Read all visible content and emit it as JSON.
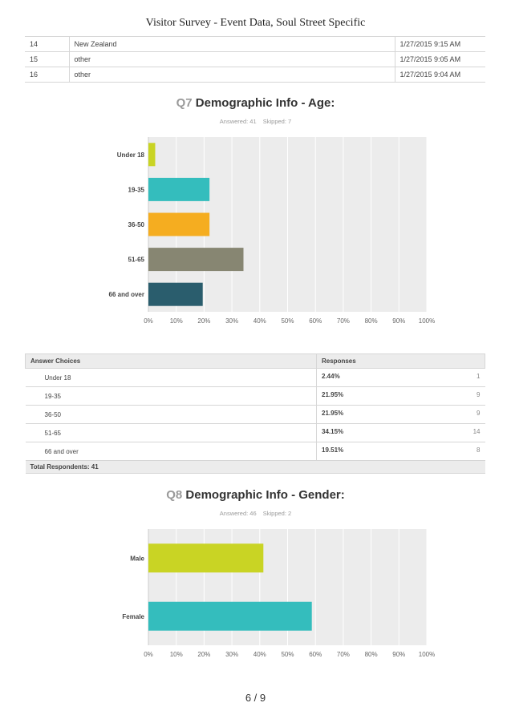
{
  "doc_title": "Visitor Survey - Event Data, Soul Street Specific",
  "top_rows": [
    {
      "num": "14",
      "text": "New Zealand",
      "date": "1/27/2015 9:15 AM"
    },
    {
      "num": "15",
      "text": "other",
      "date": "1/27/2015 9:05 AM"
    },
    {
      "num": "16",
      "text": "other",
      "date": "1/27/2015 9:04 AM"
    }
  ],
  "q7": {
    "num": "Q7",
    "title": "Demographic Info - Age:",
    "answered": "Answered: 41",
    "skipped": "Skipped: 7"
  },
  "q7_table": {
    "header_choices": "Answer Choices",
    "header_responses": "Responses",
    "rows": [
      {
        "choice": "Under 18",
        "pct": "2.44%",
        "count": "1"
      },
      {
        "choice": "19-35",
        "pct": "21.95%",
        "count": "9"
      },
      {
        "choice": "36-50",
        "pct": "21.95%",
        "count": "9"
      },
      {
        "choice": "51-65",
        "pct": "34.15%",
        "count": "14"
      },
      {
        "choice": "66 and over",
        "pct": "19.51%",
        "count": "8"
      }
    ],
    "total": "Total Respondents: 41"
  },
  "q8": {
    "num": "Q8",
    "title": "Demographic Info - Gender:",
    "answered": "Answered: 46",
    "skipped": "Skipped: 2"
  },
  "page_number": "6 / 9",
  "chart_data": [
    {
      "type": "bar",
      "orientation": "horizontal",
      "categories": [
        "Under 18",
        "19-35",
        "36-50",
        "51-65",
        "66 and over"
      ],
      "values": [
        2.44,
        21.95,
        21.95,
        34.15,
        19.51
      ],
      "colors": [
        "#c9d424",
        "#34bdbd",
        "#f5ad20",
        "#878672",
        "#2a5d6d"
      ],
      "xlim": [
        0,
        100
      ],
      "xticks": [
        "0%",
        "10%",
        "20%",
        "30%",
        "40%",
        "50%",
        "60%",
        "70%",
        "80%",
        "90%",
        "100%"
      ],
      "grid": true
    },
    {
      "type": "bar",
      "orientation": "horizontal",
      "categories": [
        "Male",
        "Female"
      ],
      "values": [
        41.3,
        58.7
      ],
      "colors": [
        "#c9d424",
        "#34bdbd"
      ],
      "xlim": [
        0,
        100
      ],
      "xticks": [
        "0%",
        "10%",
        "20%",
        "30%",
        "40%",
        "50%",
        "60%",
        "70%",
        "80%",
        "90%",
        "100%"
      ],
      "grid": true
    }
  ]
}
